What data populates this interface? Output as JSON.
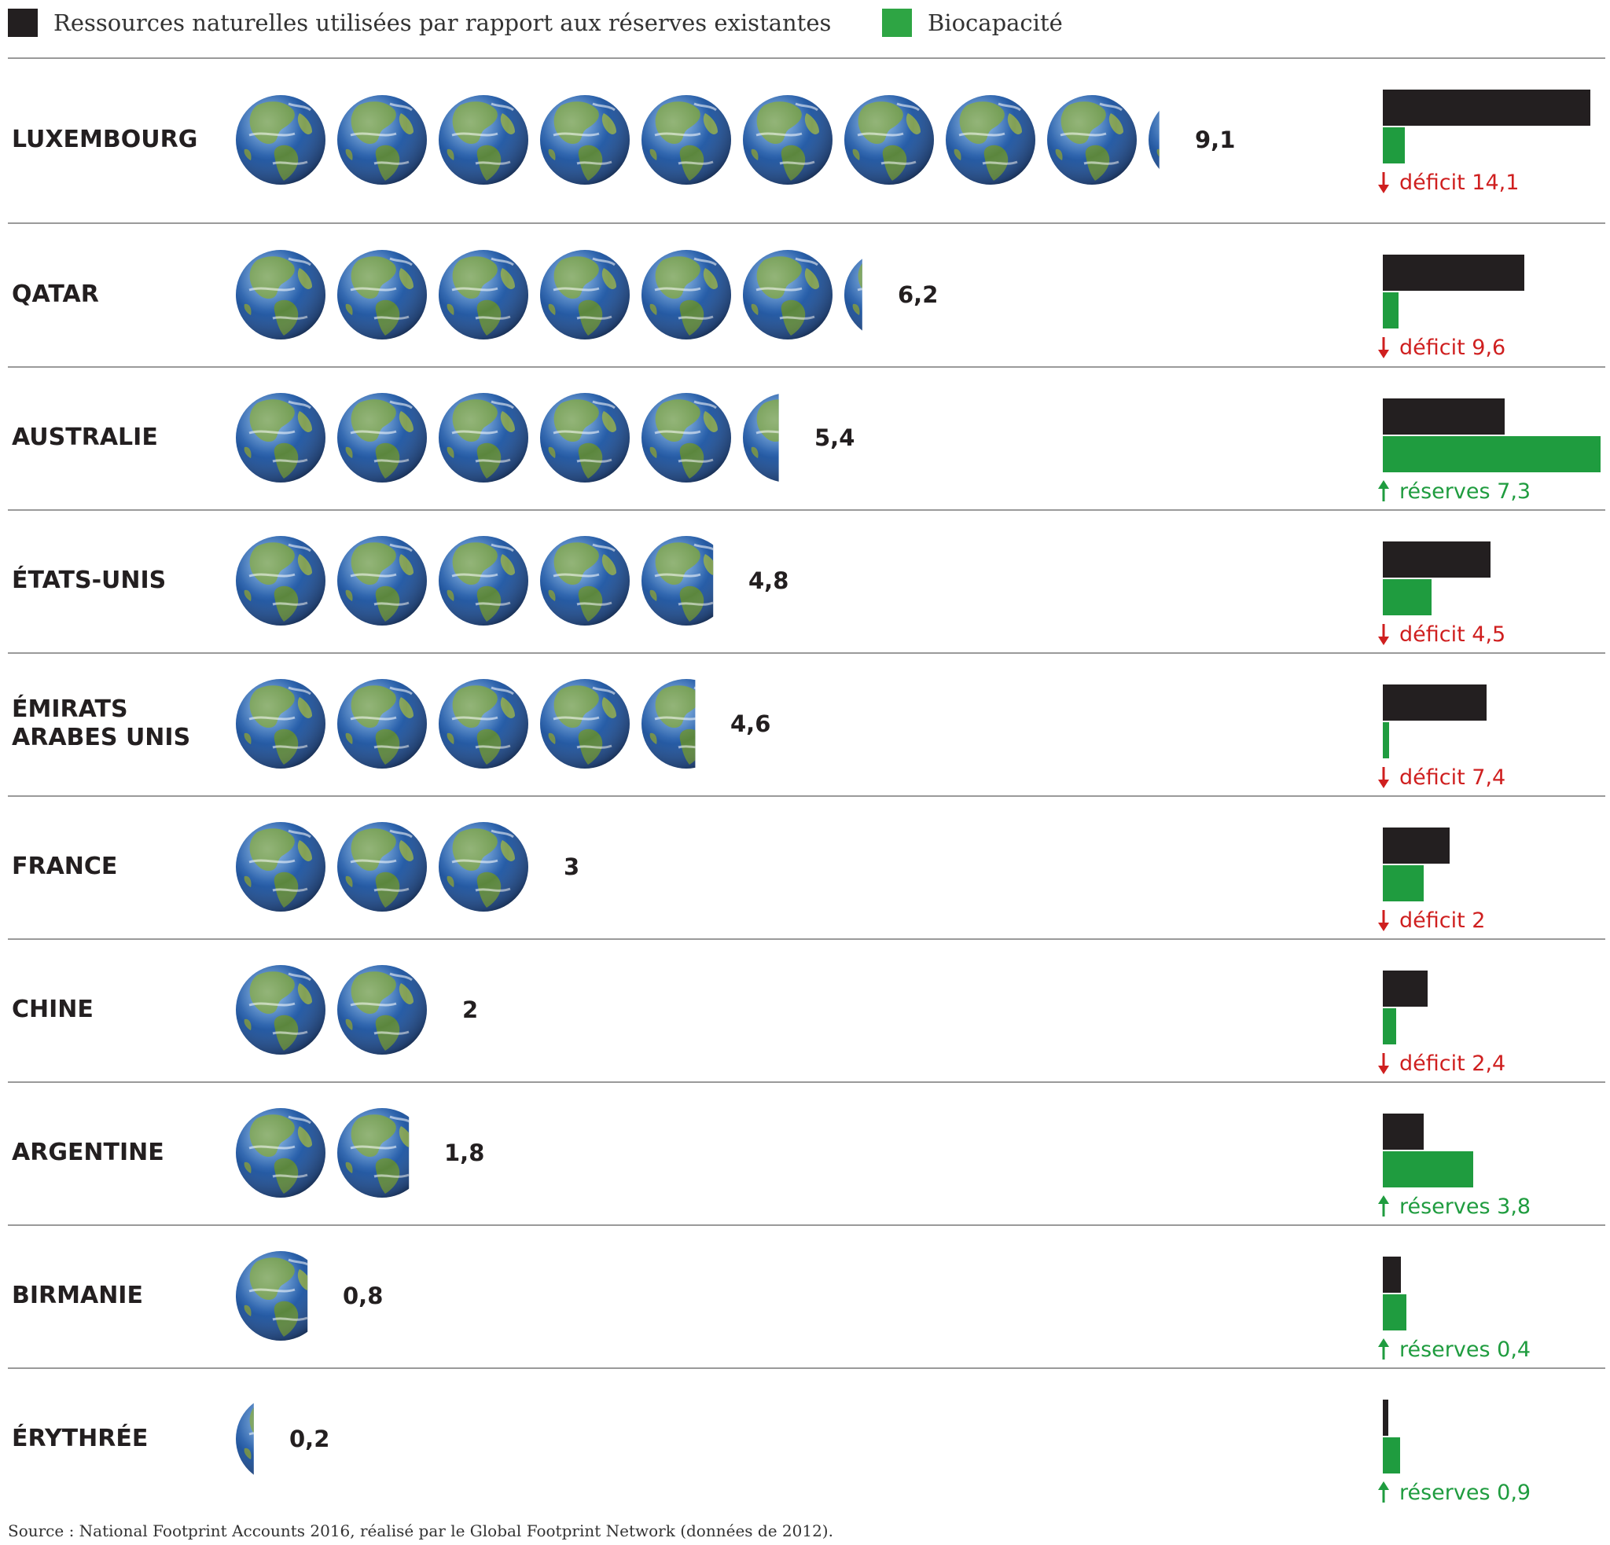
{
  "colors": {
    "resources": "#231f20",
    "biocapacity": "#1f9c3f",
    "deficit": "#cf1f1f",
    "reserve": "#1f9c3f"
  },
  "chart_data": {
    "type": "bar",
    "legend": [
      "Ressources naturelles utilisées par rapport aux réserves existantes",
      "Biocapacité"
    ],
    "legend_placement": "top",
    "source": "Source : National Footprint Accounts 2016, réalisé par le Global Footprint Network (données de 2012).",
    "rows": [
      {
        "country": "LUXEMBOURG",
        "planets": 9.1,
        "planets_label": "9,1",
        "resources": 15.8,
        "biocapacity": 1.7,
        "kind": "deficit",
        "balance_label": "déficit 14,1"
      },
      {
        "country": "QATAR",
        "planets": 6.2,
        "planets_label": "6,2",
        "resources": 10.8,
        "biocapacity": 1.2,
        "kind": "deficit",
        "balance_label": "déficit 9,6"
      },
      {
        "country": "AUSTRALIE",
        "planets": 5.4,
        "planets_label": "5,4",
        "resources": 9.3,
        "biocapacity": 16.6,
        "kind": "reserve",
        "balance_label": "réserves 7,3"
      },
      {
        "country": "ÉTATS-UNIS",
        "planets": 4.8,
        "planets_label": "4,8",
        "resources": 8.2,
        "biocapacity": 3.7,
        "kind": "deficit",
        "balance_label": "déficit 4,5"
      },
      {
        "country": "ÉMIRATS\nARABES UNIS",
        "planets": 4.6,
        "planets_label": "4,6",
        "resources": 7.9,
        "biocapacity": 0.5,
        "kind": "deficit",
        "balance_label": "déficit 7,4"
      },
      {
        "country": "FRANCE",
        "planets": 3,
        "planets_label": "3",
        "resources": 5.1,
        "biocapacity": 3.1,
        "kind": "deficit",
        "balance_label": "déficit 2"
      },
      {
        "country": "CHINE",
        "planets": 2,
        "planets_label": "2",
        "resources": 3.4,
        "biocapacity": 1.0,
        "kind": "deficit",
        "balance_label": "déficit 2,4"
      },
      {
        "country": "ARGENTINE",
        "planets": 1.8,
        "planets_label": "1,8",
        "resources": 3.1,
        "biocapacity": 6.9,
        "kind": "reserve",
        "balance_label": "réserves 3,8"
      },
      {
        "country": "BIRMANIE",
        "planets": 0.8,
        "planets_label": "0,8",
        "resources": 1.4,
        "biocapacity": 1.8,
        "kind": "reserve",
        "balance_label": "réserves 0,4"
      },
      {
        "country": "ÉRYTHRÉE",
        "planets": 0.2,
        "planets_label": "0,2",
        "resources": 0.4,
        "biocapacity": 1.3,
        "kind": "reserve",
        "balance_label": "réserves 0,9"
      }
    ]
  }
}
